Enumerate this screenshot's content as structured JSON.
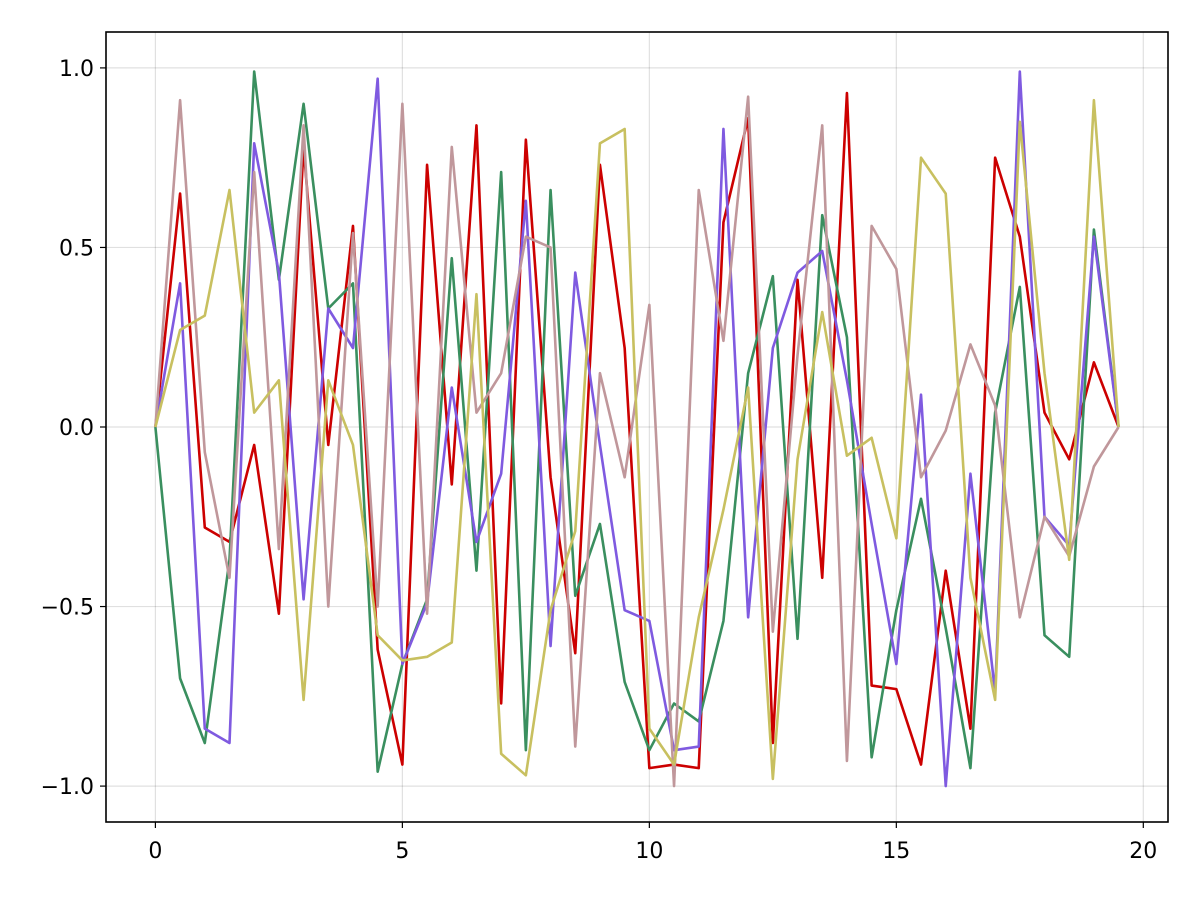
{
  "chart_data": {
    "type": "line",
    "title": "",
    "xlabel": "",
    "ylabel": "",
    "xlim": [
      -1,
      20.5
    ],
    "ylim": [
      -1.1,
      1.1
    ],
    "grid": true,
    "legend": "none",
    "x_ticks": [
      0,
      5,
      10,
      15,
      20
    ],
    "x_tick_labels": [
      "0",
      "5",
      "10",
      "15",
      "20"
    ],
    "y_ticks": [
      -1.0,
      -0.5,
      0.0,
      0.5,
      1.0
    ],
    "y_tick_labels": [
      "−1.0",
      "−0.5",
      "0.0",
      "0.5",
      "1.0"
    ],
    "x": [
      0,
      0.5,
      1,
      1.5,
      2,
      2.5,
      3,
      3.5,
      4,
      4.5,
      5,
      5.5,
      6,
      6.5,
      7,
      7.5,
      8,
      8.5,
      9,
      9.5,
      10,
      10.5,
      11,
      11.5,
      12,
      12.5,
      13,
      13.5,
      14,
      14.5,
      15,
      15.5,
      16,
      16.5,
      17,
      17.5,
      18,
      18.5,
      19,
      19.5
    ],
    "series": [
      {
        "color": "#cc0000",
        "values": [
          0.0,
          0.65,
          -0.28,
          -0.32,
          -0.05,
          -0.52,
          0.78,
          -0.05,
          0.56,
          -0.62,
          -0.94,
          0.73,
          -0.16,
          0.84,
          -0.77,
          0.8,
          -0.14,
          -0.63,
          0.73,
          0.22,
          -0.95,
          -0.94,
          -0.95,
          0.57,
          0.86,
          -0.88,
          0.41,
          -0.42,
          0.93,
          -0.72,
          -0.73,
          -0.94,
          -0.4,
          -0.84,
          0.75,
          0.53,
          0.04,
          -0.09,
          0.18,
          0.0
        ]
      },
      {
        "color": "#3a8f5f",
        "values": [
          0.0,
          -0.7,
          -0.88,
          -0.37,
          0.99,
          0.41,
          0.9,
          0.33,
          0.4,
          -0.96,
          -0.66,
          -0.48,
          0.47,
          -0.4,
          0.71,
          -0.9,
          0.66,
          -0.47,
          -0.27,
          -0.71,
          -0.9,
          -0.77,
          -0.82,
          -0.54,
          0.15,
          0.42,
          -0.59,
          0.59,
          0.25,
          -0.92,
          -0.51,
          -0.2,
          -0.56,
          -0.95,
          0.04,
          0.39,
          -0.58,
          -0.64,
          0.55,
          0.0
        ]
      },
      {
        "color": "#7f5ae0",
        "values": [
          0.0,
          0.4,
          -0.84,
          -0.88,
          0.79,
          0.43,
          -0.48,
          0.33,
          0.22,
          0.97,
          -0.66,
          -0.49,
          0.11,
          -0.32,
          -0.13,
          0.63,
          -0.61,
          0.43,
          -0.05,
          -0.51,
          -0.54,
          -0.9,
          -0.89,
          0.83,
          -0.53,
          0.22,
          0.43,
          0.49,
          0.13,
          -0.27,
          -0.66,
          0.09,
          -1.0,
          -0.13,
          -0.74,
          0.99,
          -0.25,
          -0.33,
          0.53,
          0.0
        ]
      },
      {
        "color": "#c0979b",
        "values": [
          0.0,
          0.91,
          -0.07,
          -0.42,
          0.71,
          -0.34,
          0.84,
          -0.5,
          0.54,
          -0.5,
          0.9,
          -0.52,
          0.78,
          0.04,
          0.15,
          0.53,
          0.5,
          -0.89,
          0.15,
          -0.14,
          0.34,
          -1.0,
          0.66,
          0.24,
          0.92,
          -0.57,
          0.2,
          0.84,
          -0.93,
          0.56,
          0.44,
          -0.14,
          -0.01,
          0.23,
          0.06,
          -0.53,
          -0.25,
          -0.36,
          -0.11,
          0.0
        ]
      },
      {
        "color": "#c8c060",
        "values": [
          0.0,
          0.27,
          0.31,
          0.66,
          0.04,
          0.13,
          -0.76,
          0.13,
          -0.05,
          -0.58,
          -0.65,
          -0.64,
          -0.6,
          0.37,
          -0.91,
          -0.97,
          -0.51,
          -0.29,
          0.79,
          0.83,
          -0.84,
          -0.94,
          -0.53,
          -0.23,
          0.11,
          -0.98,
          -0.09,
          0.32,
          -0.08,
          -0.03,
          -0.31,
          0.75,
          0.65,
          -0.42,
          -0.76,
          0.85,
          0.15,
          -0.37,
          0.91,
          0.0
        ]
      }
    ]
  }
}
